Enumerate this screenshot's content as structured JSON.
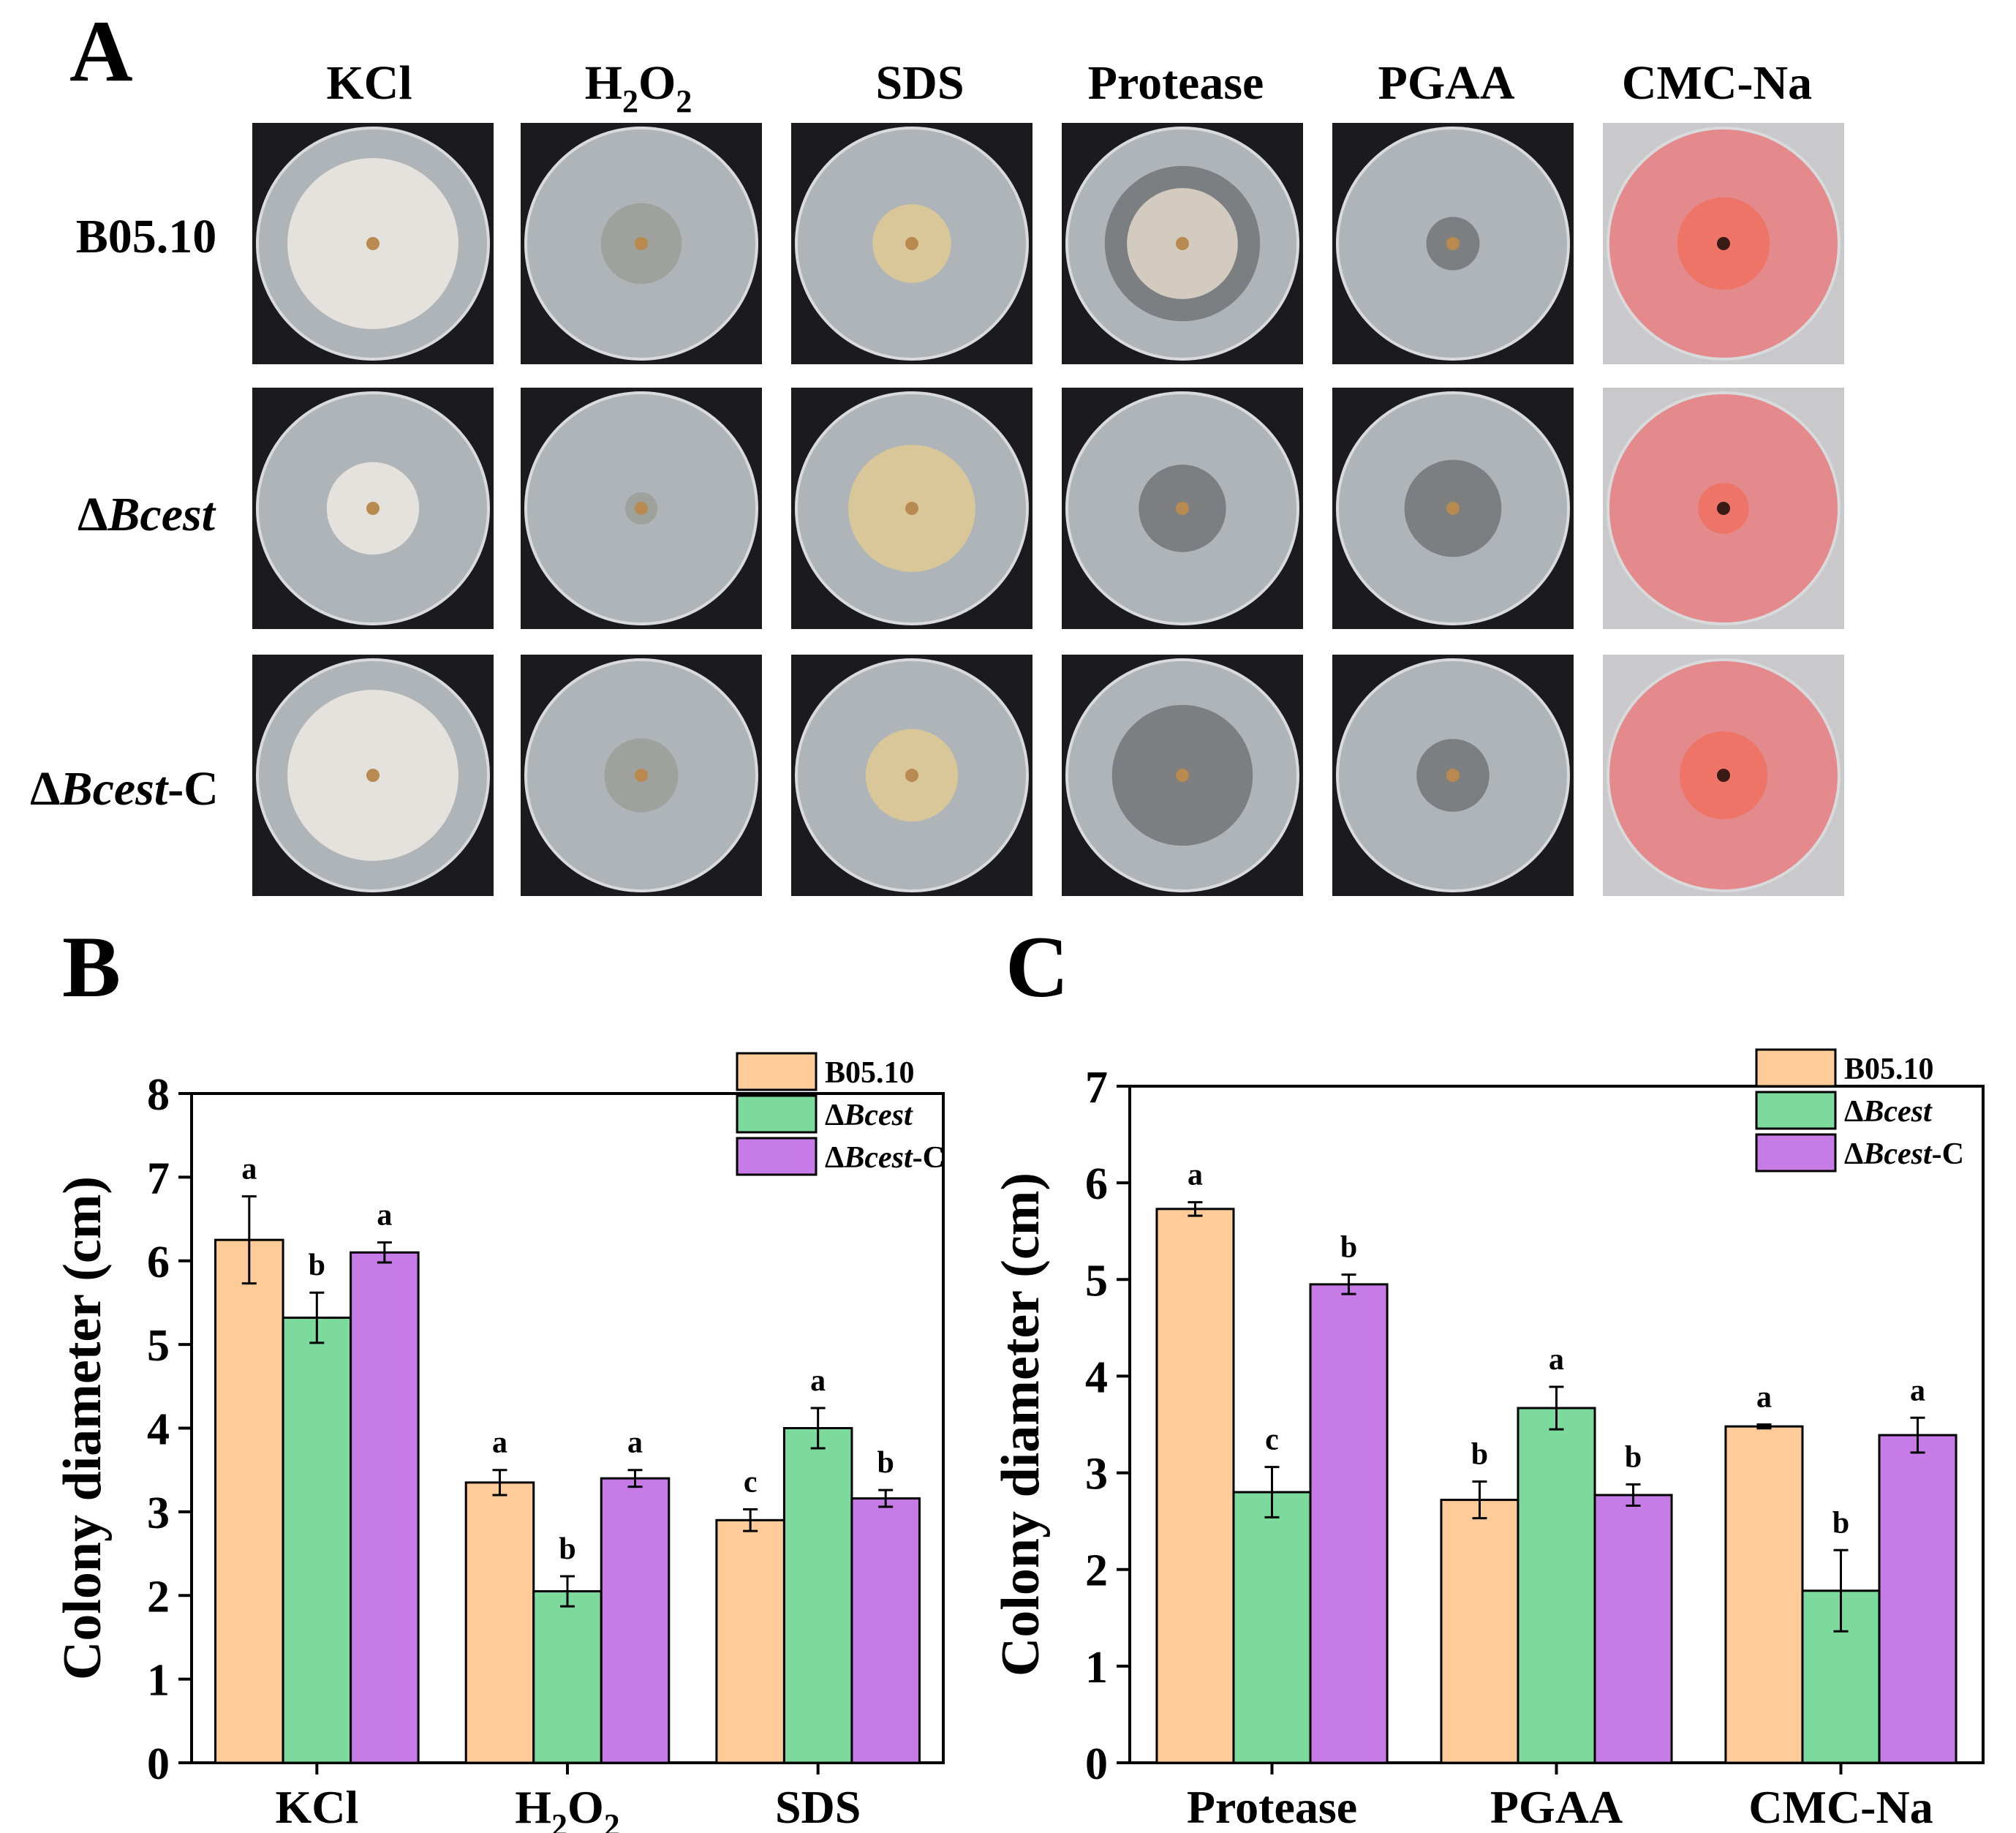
{
  "panel_labels": {
    "a": "A",
    "b": "B",
    "c": "C"
  },
  "panel_a": {
    "columns": [
      {
        "label": "KCl",
        "sub": "",
        "suffix": ""
      },
      {
        "label": "H",
        "sub": "2",
        "mid": "O",
        "sub2": "2"
      },
      {
        "label": "SDS"
      },
      {
        "label": "Protease"
      },
      {
        "label": "PGAA"
      },
      {
        "label": "CMC-Na"
      }
    ],
    "rows": [
      {
        "prefix": "",
        "italic": "",
        "plain": "B05.10"
      },
      {
        "prefix": "Δ",
        "italic": "Bcest",
        "plain": ""
      },
      {
        "prefix": "Δ",
        "italic": "Bcest",
        "plain": "-C"
      }
    ],
    "plate_styles": {
      "dark_bg": "#1b1b1f",
      "pink_bg": "#c9c9cb",
      "agar_gray": "#aeb4b8",
      "agar_pink": "#e58a8c",
      "mycelium": "#e9e6df",
      "halo_gray": "#6b6e70",
      "halo_pink": "#ef7060"
    }
  },
  "legend": {
    "items": [
      {
        "prefix": "",
        "italic": "",
        "plain": "B05.10",
        "color": "#FFCC99"
      },
      {
        "prefix": "Δ",
        "italic": "Bcest",
        "plain": "",
        "color": "#7DDA9D"
      },
      {
        "prefix": "Δ",
        "italic": "Bcest",
        "plain": "-C",
        "color": "#C77BE6"
      }
    ]
  },
  "chart_data": [
    {
      "type": "bar",
      "panel": "B",
      "ylabel": "Colony diameter (cm)",
      "ylim": [
        0,
        8
      ],
      "yticks": [
        0,
        1,
        2,
        3,
        4,
        5,
        6,
        7,
        8
      ],
      "categories": [
        "KCl",
        "H2O2",
        "SDS"
      ],
      "category_labels": [
        {
          "t": "KCl"
        },
        {
          "t": "H",
          "s1": "2",
          "m": "O",
          "s2": "2"
        },
        {
          "t": "SDS"
        }
      ],
      "series": [
        {
          "name": "B05.10",
          "values": [
            6.25,
            3.35,
            2.9
          ],
          "errors": [
            0.52,
            0.15,
            0.13
          ],
          "letters": [
            "a",
            "a",
            "c"
          ]
        },
        {
          "name": "ΔBcest",
          "values": [
            5.32,
            2.05,
            4.0
          ],
          "errors": [
            0.3,
            0.18,
            0.24
          ],
          "letters": [
            "b",
            "b",
            "a"
          ]
        },
        {
          "name": "ΔBcest-C",
          "values": [
            6.1,
            3.4,
            3.16
          ],
          "errors": [
            0.12,
            0.1,
            0.1
          ],
          "letters": [
            "a",
            "a",
            "b"
          ]
        }
      ],
      "legend_position": "top-right"
    },
    {
      "type": "bar",
      "panel": "C",
      "ylabel": "Colony diameter (cm)",
      "ylim": [
        0,
        7
      ],
      "yticks": [
        0,
        1,
        2,
        3,
        4,
        5,
        6,
        7
      ],
      "categories": [
        "Protease",
        "PGAA",
        "CMC-Na"
      ],
      "category_labels": [
        {
          "t": "Protease"
        },
        {
          "t": "PGAA"
        },
        {
          "t": "CMC-Na"
        }
      ],
      "series": [
        {
          "name": "B05.10",
          "values": [
            5.73,
            2.72,
            3.48
          ],
          "errors": [
            0.07,
            0.19,
            0.02
          ],
          "letters": [
            "a",
            "b",
            "a"
          ]
        },
        {
          "name": "ΔBcest",
          "values": [
            2.8,
            3.67,
            1.78
          ],
          "errors": [
            0.26,
            0.22,
            0.42
          ],
          "letters": [
            "c",
            "a",
            "b"
          ]
        },
        {
          "name": "ΔBcest-C",
          "values": [
            4.95,
            2.77,
            3.39
          ],
          "errors": [
            0.1,
            0.11,
            0.18
          ],
          "letters": [
            "b",
            "b",
            "a"
          ]
        }
      ],
      "legend_position": "top-right"
    }
  ]
}
